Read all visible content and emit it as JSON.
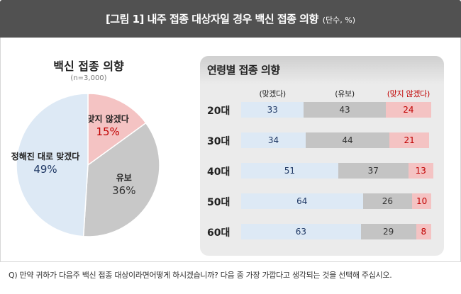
{
  "header": {
    "title": "[그림 1] 내주 접종 대상자일 경우 백신 접종 의향",
    "unit": "(단수, %)"
  },
  "pie_chart": {
    "title": "백신 접종 의향",
    "subtitle": "(n=3,000)"
  },
  "bar_chart": {
    "title": "연령별 접종 의향"
  },
  "footnote": "Q) 만약 귀하가 다음주 백신 접종 대상이라면어떻게 하시겠습니까? 다음 중 가장 가깝다고 생각되는 것을 선택해 주십시오.",
  "chart_data": [
    {
      "type": "pie",
      "title": "백신 접종 의향",
      "subtitle": "(n=3,000)",
      "slices": [
        {
          "label": "맞지 않겠다",
          "value": 15,
          "display": "15%",
          "color": "#f4c3c3",
          "label_color": "#c00000"
        },
        {
          "label": "유보",
          "value": 36,
          "display": "36%",
          "color": "#c8c8c8",
          "label_color": "#333333"
        },
        {
          "label": "정해진 대로 맞겠다",
          "value": 49,
          "display": "49%",
          "color": "#dde9f5",
          "label_color": "#1f3864"
        }
      ]
    },
    {
      "type": "bar",
      "stacked": true,
      "orientation": "horizontal",
      "title": "연령별 접종 의향",
      "categories": [
        "20대",
        "30대",
        "40대",
        "50대",
        "60대"
      ],
      "series": [
        {
          "name": "(맞겠다)",
          "values": [
            33,
            34,
            51,
            64,
            63
          ],
          "color": "#dde9f5",
          "text_color": "#1f3864"
        },
        {
          "name": "(유보)",
          "values": [
            43,
            44,
            37,
            26,
            29
          ],
          "color": "#c4c4c4",
          "text_color": "#333333"
        },
        {
          "name": "(맞지 않겠다)",
          "values": [
            24,
            21,
            13,
            10,
            8
          ],
          "color": "#f4c3c3",
          "text_color": "#c00000"
        }
      ]
    }
  ]
}
